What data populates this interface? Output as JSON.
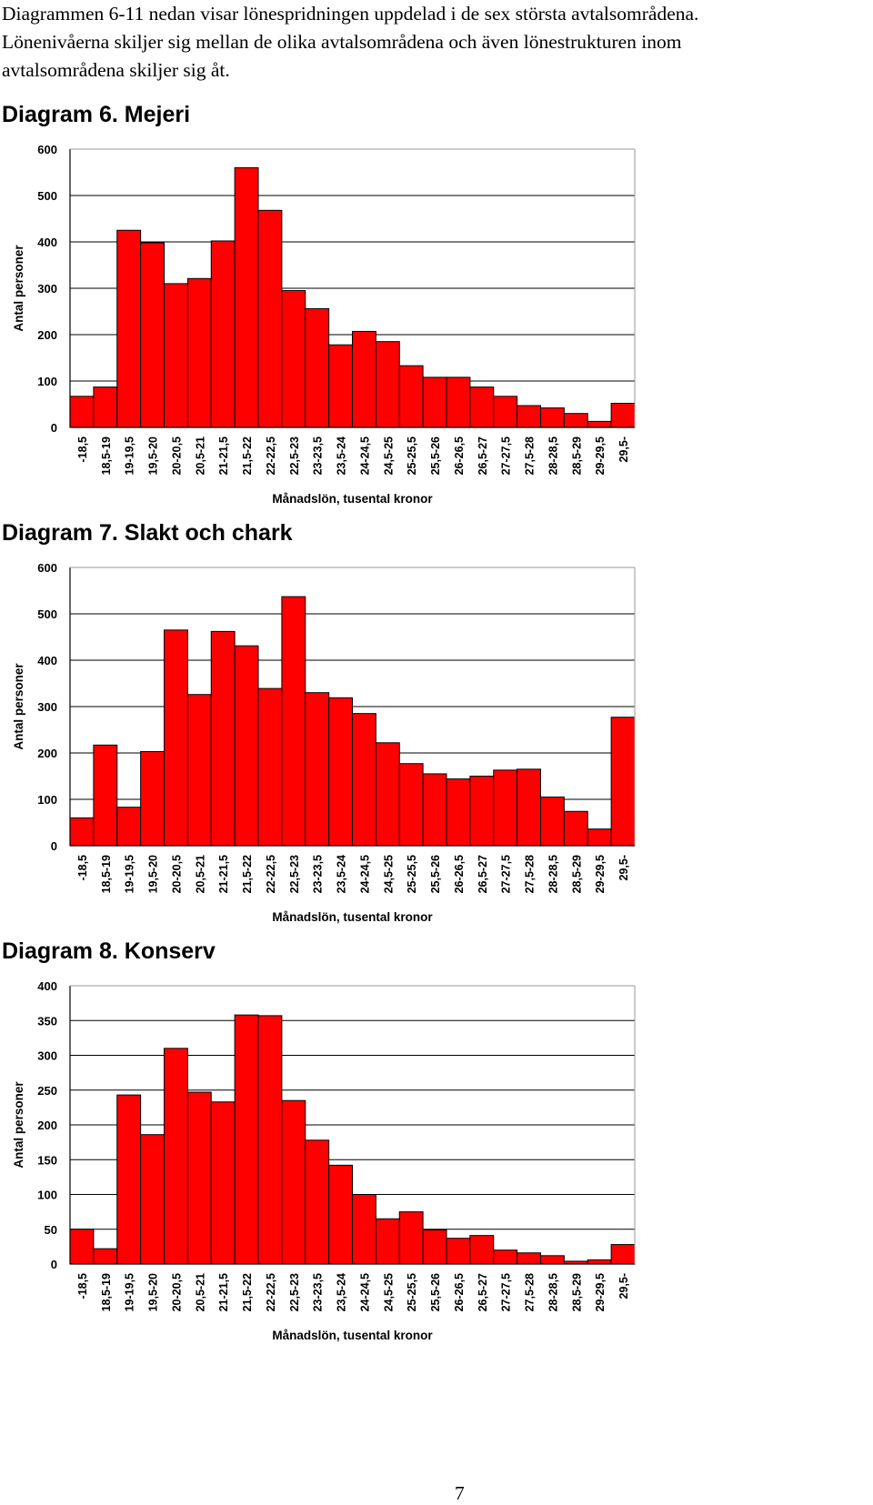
{
  "intro": {
    "lines": [
      "Diagrammen 6-11 nedan visar lönespridningen uppdelad i de sex största avtalsområdena.",
      "Lönenivåerna skiljer sig mellan de olika avtalsområdena och även lönestrukturen inom",
      "avtalsområdena skiljer sig åt."
    ]
  },
  "colors": {
    "bar": "#ff0000",
    "bar_stroke": "#000000",
    "grid": "#000000",
    "plot_bg": "#ffffff"
  },
  "chart_data": [
    {
      "type": "bar",
      "title": "Diagram 6. Mejeri",
      "xlabel": "Månadslön, tusental kronor",
      "ylabel": "Antal personer",
      "ylim": [
        0,
        600
      ],
      "yticks": [
        0,
        100,
        200,
        300,
        400,
        500,
        600
      ],
      "grid": true,
      "categories": [
        "-18,5",
        "18,5-19",
        "19-19,5",
        "19,5-20",
        "20-20,5",
        "20,5-21",
        "21-21,5",
        "21,5-22",
        "22-22,5",
        "22,5-23",
        "23-23,5",
        "23,5-24",
        "24-24,5",
        "24,5-25",
        "25-25,5",
        "25,5-26",
        "26-26,5",
        "26,5-27",
        "27-27,5",
        "27,5-28",
        "28-28,5",
        "28,5-29",
        "29-29,5",
        "29,5-"
      ],
      "values": [
        67,
        87,
        425,
        398,
        310,
        321,
        402,
        560,
        468,
        295,
        256,
        178,
        207,
        185,
        133,
        108,
        108,
        87,
        67,
        47,
        42,
        30,
        13,
        52
      ]
    },
    {
      "type": "bar",
      "title": "Diagram 7. Slakt och chark",
      "xlabel": "Månadslön, tusental kronor",
      "ylabel": "Antal personer",
      "ylim": [
        0,
        600
      ],
      "yticks": [
        0,
        100,
        200,
        300,
        400,
        500,
        600
      ],
      "grid": true,
      "categories": [
        "-18,5",
        "18,5-19",
        "19-19,5",
        "19,5-20",
        "20-20,5",
        "20,5-21",
        "21-21,5",
        "21,5-22",
        "22-22,5",
        "22,5-23",
        "23-23,5",
        "23,5-24",
        "24-24,5",
        "24,5-25",
        "25-25,5",
        "25,5-26",
        "26-26,5",
        "26,5-27",
        "27-27,5",
        "27,5-28",
        "28-28,5",
        "28,5-29",
        "29-29,5",
        "29,5-"
      ],
      "values": [
        60,
        217,
        83,
        203,
        465,
        326,
        462,
        431,
        339,
        537,
        330,
        319,
        285,
        222,
        177,
        155,
        144,
        150,
        163,
        165,
        105,
        74,
        36,
        277
      ]
    },
    {
      "type": "bar",
      "title": "Diagram 8. Konserv",
      "xlabel": "Månadslön, tusental kronor",
      "ylabel": "Antal personer",
      "ylim": [
        0,
        400
      ],
      "yticks": [
        0,
        50,
        100,
        150,
        200,
        250,
        300,
        350,
        400
      ],
      "grid": true,
      "categories": [
        "-18,5",
        "18,5-19",
        "19-19,5",
        "19,5-20",
        "20-20,5",
        "20,5-21",
        "21-21,5",
        "21,5-22",
        "22-22,5",
        "22,5-23",
        "23-23,5",
        "23,5-24",
        "24-24,5",
        "24,5-25",
        "25-25,5",
        "25,5-26",
        "26-26,5",
        "26,5-27",
        "27-27,5",
        "27,5-28",
        "28-28,5",
        "28,5-29",
        "29-29,5",
        "29,5-"
      ],
      "values": [
        50,
        22,
        243,
        186,
        310,
        247,
        233,
        358,
        357,
        235,
        178,
        142,
        100,
        65,
        75,
        49,
        37,
        41,
        20,
        16,
        12,
        4,
        6,
        28
      ]
    }
  ],
  "page_number": "7"
}
